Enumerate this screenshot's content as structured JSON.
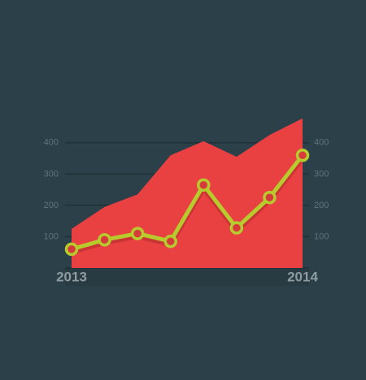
{
  "chart_data": {
    "type": "line",
    "categories": [
      "2013",
      null,
      null,
      null,
      null,
      null,
      null,
      "2014"
    ],
    "series": [
      {
        "type": "area",
        "color": "#e94141",
        "values": [
          125,
          195,
          235,
          360,
          405,
          355,
          425,
          478
        ]
      },
      {
        "type": "line",
        "color": "#b7cc2c",
        "values": [
          60,
          90,
          110,
          85,
          265,
          128,
          225,
          360
        ]
      }
    ],
    "ylim": [
      0,
      480
    ],
    "yticks": [
      100,
      200,
      300,
      400
    ],
    "y2lim": [
      0,
      480
    ],
    "y2ticks": [
      100,
      200,
      300,
      400
    ],
    "grid": true
  }
}
